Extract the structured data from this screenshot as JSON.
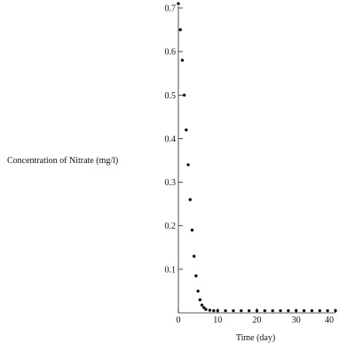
{
  "chart_data": {
    "type": "scatter",
    "title": "",
    "xlabel": "Time (day)",
    "ylabel": "Concentration of Nitrate (mg/l)",
    "xlim": [
      0,
      40
    ],
    "ylim": [
      0,
      0.7
    ],
    "grid": false,
    "legend": "none",
    "x_ticks": [
      0,
      10,
      20,
      30,
      40
    ],
    "y_ticks": [
      0.1,
      0.2,
      0.3,
      0.4,
      0.5,
      0.6,
      0.7
    ],
    "series": [
      {
        "style": "dotted",
        "color": "#111111",
        "x": [
          0,
          0.5,
          1,
          1.5,
          2,
          2.5,
          3,
          3.5,
          4,
          4.5,
          5,
          5.5,
          6,
          6.5,
          7,
          8,
          9,
          10,
          12,
          14,
          16,
          18,
          20,
          22,
          24,
          26,
          28,
          30,
          32,
          34,
          36,
          38,
          40
        ],
        "y": [
          0.71,
          0.65,
          0.58,
          0.5,
          0.42,
          0.34,
          0.26,
          0.19,
          0.13,
          0.085,
          0.05,
          0.03,
          0.018,
          0.012,
          0.008,
          0.006,
          0.005,
          0.005,
          0.005,
          0.005,
          0.005,
          0.005,
          0.005,
          0.005,
          0.005,
          0.005,
          0.005,
          0.005,
          0.005,
          0.005,
          0.005,
          0.005,
          0.005
        ]
      }
    ]
  }
}
